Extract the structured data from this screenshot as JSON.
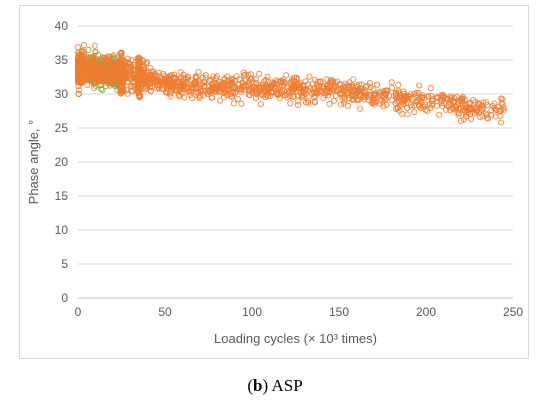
{
  "chart_data": {
    "type": "scatter",
    "title": "",
    "xlabel": "Loading cycles (× 10³ times)",
    "ylabel": "Phase angle, °",
    "xlim": [
      0,
      250
    ],
    "ylim": [
      0,
      40
    ],
    "x_ticks": [
      "0",
      "50",
      "100",
      "150",
      "200",
      "250"
    ],
    "y_ticks": [
      "0",
      "5",
      "10",
      "15",
      "20",
      "25",
      "30",
      "35",
      "40"
    ],
    "grid": true,
    "legend": "none",
    "marker": "hollow-circle",
    "colors": {
      "early_points": "#70ad47",
      "main_points": "#ed7d31",
      "grid": "#d9d9d9",
      "text": "#595959"
    },
    "trend": {
      "x": [
        0,
        25,
        50,
        75,
        100,
        125,
        150,
        175,
        200,
        225,
        245
      ],
      "y": [
        33.8,
        33.0,
        31.5,
        31.0,
        31.0,
        30.8,
        30.5,
        29.5,
        29.0,
        28.0,
        27.5
      ]
    },
    "scatter_spread": 1.2
  },
  "caption": {
    "label_open": "(",
    "label_bold": "b",
    "label_close": ") ",
    "label_text": "ASP"
  }
}
